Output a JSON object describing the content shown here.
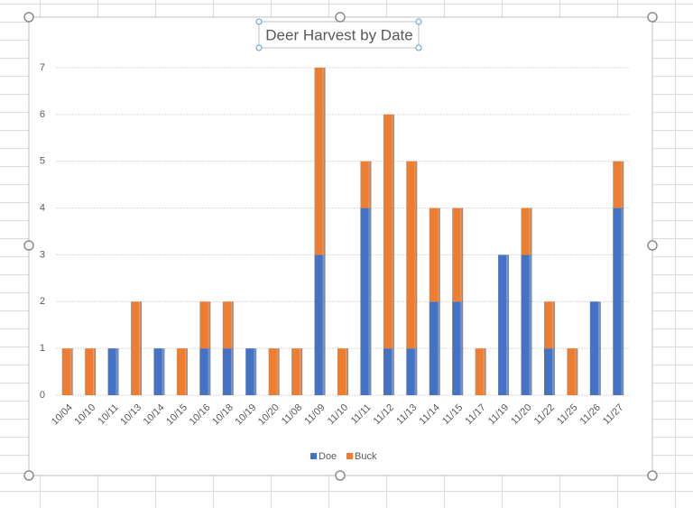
{
  "chart_data": {
    "type": "bar",
    "stacked": true,
    "title": "Deer Harvest by Date",
    "categories": [
      "10/04",
      "10/10",
      "10/11",
      "10/13",
      "10/14",
      "10/15",
      "10/16",
      "10/18",
      "10/19",
      "10/20",
      "11/08",
      "11/09",
      "11/10",
      "11/11",
      "11/12",
      "11/13",
      "11/14",
      "11/15",
      "11/17",
      "11/19",
      "11/20",
      "11/22",
      "11/25",
      "11/26",
      "11/27"
    ],
    "series": [
      {
        "name": "Doe",
        "color": "#4472c4",
        "values": [
          0,
          0,
          1,
          0,
          1,
          0,
          1,
          1,
          1,
          0,
          0,
          3,
          0,
          4,
          1,
          1,
          2,
          2,
          0,
          3,
          3,
          1,
          0,
          2,
          4
        ]
      },
      {
        "name": "Buck",
        "color": "#ed7d31",
        "values": [
          1,
          1,
          0,
          2,
          0,
          1,
          1,
          1,
          0,
          1,
          1,
          4,
          1,
          1,
          5,
          4,
          2,
          2,
          1,
          0,
          1,
          1,
          1,
          0,
          1
        ]
      }
    ],
    "ylim": [
      0,
      7
    ],
    "yticks": [
      0,
      1,
      2,
      3,
      4,
      5,
      6,
      7
    ],
    "grid": true,
    "legend": "bottom"
  }
}
